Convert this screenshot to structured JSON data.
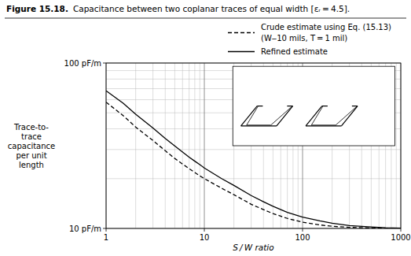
{
  "chart_data": {
    "type": "line",
    "title": "Figure 15.18.",
    "subtitle": "Capacitance between two coplanar traces of equal width [εᵣ = 4.5].",
    "x_label": "S / W ratio",
    "y_label": "Trace-to-\ntrace\ncapacitance\nper unit\nlength",
    "annotations": [
      "(W‒10 mils, T = 1 mil)"
    ],
    "log": true,
    "grid": true,
    "xlim": [
      1,
      1000
    ],
    "ylim": [
      10,
      100
    ],
    "xticks": [
      1,
      10,
      100,
      1000
    ],
    "yticks": [
      {
        "value": 10,
        "label": "10 pF/m"
      },
      {
        "value": 100,
        "label": "100 pF/m"
      }
    ],
    "x": [
      1,
      1.5,
      2,
      3,
      4,
      5,
      6,
      7,
      8,
      9,
      10,
      15,
      20,
      30,
      40,
      50,
      70,
      100,
      150,
      200,
      300,
      500,
      700,
      1000
    ],
    "series": [
      {
        "name": "Crude estimate using Eq. (15.13)",
        "color": "#000000",
        "line_style": "dashed",
        "values": [
          58,
          48,
          41,
          34,
          29.5,
          26.5,
          24.5,
          23,
          21.8,
          20.8,
          20,
          17.5,
          16,
          14,
          13.0,
          12.3,
          11.5,
          10.9,
          10.5,
          10.3,
          10.15,
          10.06,
          10.03,
          10.01
        ]
      },
      {
        "name": "Refined estimate",
        "color": "#000000",
        "line_style": "solid",
        "values": [
          68,
          57,
          49,
          40.5,
          35,
          31.5,
          29,
          27,
          25.5,
          24.3,
          23.2,
          20,
          18.2,
          15.8,
          14.5,
          13.6,
          12.5,
          11.7,
          11.1,
          10.75,
          10.4,
          10.2,
          10.1,
          10.05
        ]
      }
    ]
  }
}
